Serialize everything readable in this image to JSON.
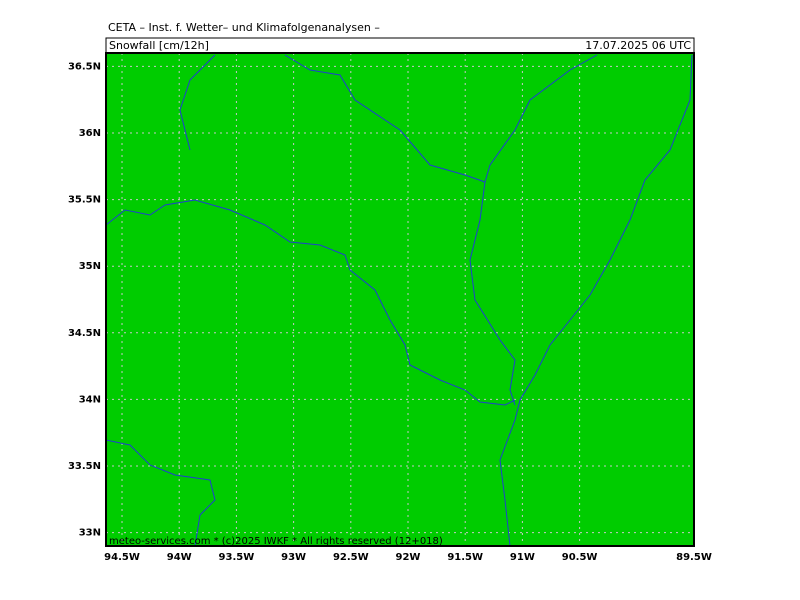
{
  "header": {
    "title": "CETA – Inst. f. Wetter– und Klimafolgenanalysen –",
    "variable": "Snowfall [cm/12h]",
    "valid_time": "17.07.2025 06 UTC"
  },
  "map": {
    "xlim": [
      -94.64,
      -89.5
    ],
    "ylim": [
      32.9,
      36.6
    ],
    "lon_ticks": [
      {
        "value": -94.5,
        "label": "94.5W"
      },
      {
        "value": -94,
        "label": "94W"
      },
      {
        "value": -93.5,
        "label": "93.5W"
      },
      {
        "value": -93,
        "label": "93W"
      },
      {
        "value": -92.5,
        "label": "92.5W"
      },
      {
        "value": -92,
        "label": "92W"
      },
      {
        "value": -91.5,
        "label": "91.5W"
      },
      {
        "value": -91,
        "label": "91W"
      },
      {
        "value": -90.5,
        "label": "90.5W"
      },
      {
        "value": -89.5,
        "label": "89.5W"
      }
    ],
    "lat_ticks": [
      {
        "value": 36.5,
        "label": "36.5N"
      },
      {
        "value": 36,
        "label": "36N"
      },
      {
        "value": 35.5,
        "label": "35.5N"
      },
      {
        "value": 35,
        "label": "35N"
      },
      {
        "value": 34.5,
        "label": "34.5N"
      },
      {
        "value": 34,
        "label": "34N"
      },
      {
        "value": 33.5,
        "label": "33.5N"
      },
      {
        "value": 33,
        "label": "33N"
      }
    ],
    "fill_color": "#00cc00",
    "river_color": "#1f3fd0",
    "grid": true
  },
  "footer": "meteo-services.com * (c)2025 IWKF * All rights reserved (12+018)"
}
